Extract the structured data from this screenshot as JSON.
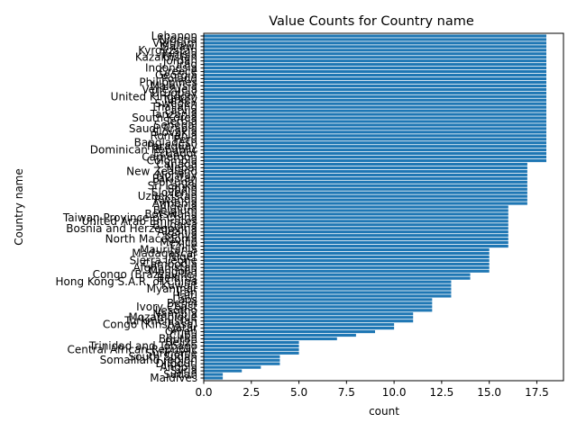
{
  "chart_data": {
    "type": "bar",
    "orientation": "horizontal",
    "title": "Value Counts for Country name",
    "xlabel": "count",
    "ylabel": "Country name",
    "xlim": [
      0,
      18.9
    ],
    "xticks": [
      "0.0",
      "2.5",
      "5.0",
      "7.5",
      "10.0",
      "12.5",
      "15.0",
      "17.5"
    ],
    "grid": false,
    "bar_color": "#1f77b4",
    "categories": [
      "Lebanon",
      "Nigeria",
      "Vietnam",
      "Malawi",
      "Kyrgyzstan",
      "Tunisia",
      "Kazakhstan",
      "Jordan",
      "Iraq",
      "Indonesia",
      "Greece",
      "Georgia",
      "Poland",
      "Philippines",
      "Malaysia",
      "Venezuela",
      "Uruguay",
      "United Kingdom",
      "Turkey",
      "Sweden",
      "Thailand",
      "Latvia",
      "Tanzania",
      "South Korea",
      "Serbia",
      "Senegal",
      "Saudi Arabia",
      "Slovakia",
      "Romania",
      "Peru",
      "Bangladesh",
      "Paraguay",
      "Dominican Republic",
      "Ecuador",
      "Cameroon",
      "Colombia",
      "Canada",
      "Nepal",
      "New Zealand",
      "Norway",
      "Pakistan",
      "Portugal",
      "Sri Lanka",
      "Spain",
      "Slovenia",
      "Uzbekistan",
      "Rwanda",
      "Armenia",
      "Algeria",
      "Belgium",
      "Botswana",
      "Taiwan Province of China",
      "United Arab Emirates",
      "Bulgaria",
      "Bosnia and Herzegovina",
      "Albania",
      "Kenya",
      "North Macedonia",
      "Mexico",
      "Chile",
      "Mauritania",
      "Madagascar",
      "Niger",
      "Sierra Leone",
      "Cambodia",
      "Afghanistan",
      "Mongolia",
      "Congo (Brazzaville)",
      "Belarus",
      "Hong Kong S.A.R. of China",
      "Kuwait",
      "Myanmar",
      "Iran",
      "Haiti",
      "Laos",
      "Benin",
      "Ivory Coast",
      "Lesotho",
      "Namibia",
      "Mozambique",
      "Turkmenistan",
      "Congo (Kinshasa)",
      "Qatar",
      "Oman",
      "Cuba",
      "Bhutan",
      "Belize",
      "Trinidad and Tobago",
      "Central African Republic",
      "Suriname",
      "South Sudan",
      "Somaliland region",
      "Djibouti",
      "Angola",
      "Syria",
      "Sudan",
      "Maldives"
    ],
    "values": [
      18,
      18,
      18,
      18,
      18,
      18,
      18,
      18,
      18,
      18,
      18,
      18,
      18,
      18,
      18,
      18,
      18,
      18,
      18,
      18,
      18,
      18,
      18,
      18,
      18,
      18,
      18,
      18,
      18,
      18,
      18,
      18,
      18,
      18,
      18,
      18,
      17,
      17,
      17,
      17,
      17,
      17,
      17,
      17,
      17,
      17,
      17,
      17,
      16,
      16,
      16,
      16,
      16,
      16,
      16,
      16,
      16,
      16,
      16,
      16,
      15,
      15,
      15,
      15,
      15,
      15,
      15,
      14,
      14,
      13,
      13,
      13,
      13,
      13,
      12,
      12,
      12,
      12,
      11,
      11,
      11,
      10,
      10,
      9,
      8,
      7,
      5,
      5,
      5,
      5,
      4,
      4,
      4,
      3,
      2,
      1,
      1
    ]
  }
}
